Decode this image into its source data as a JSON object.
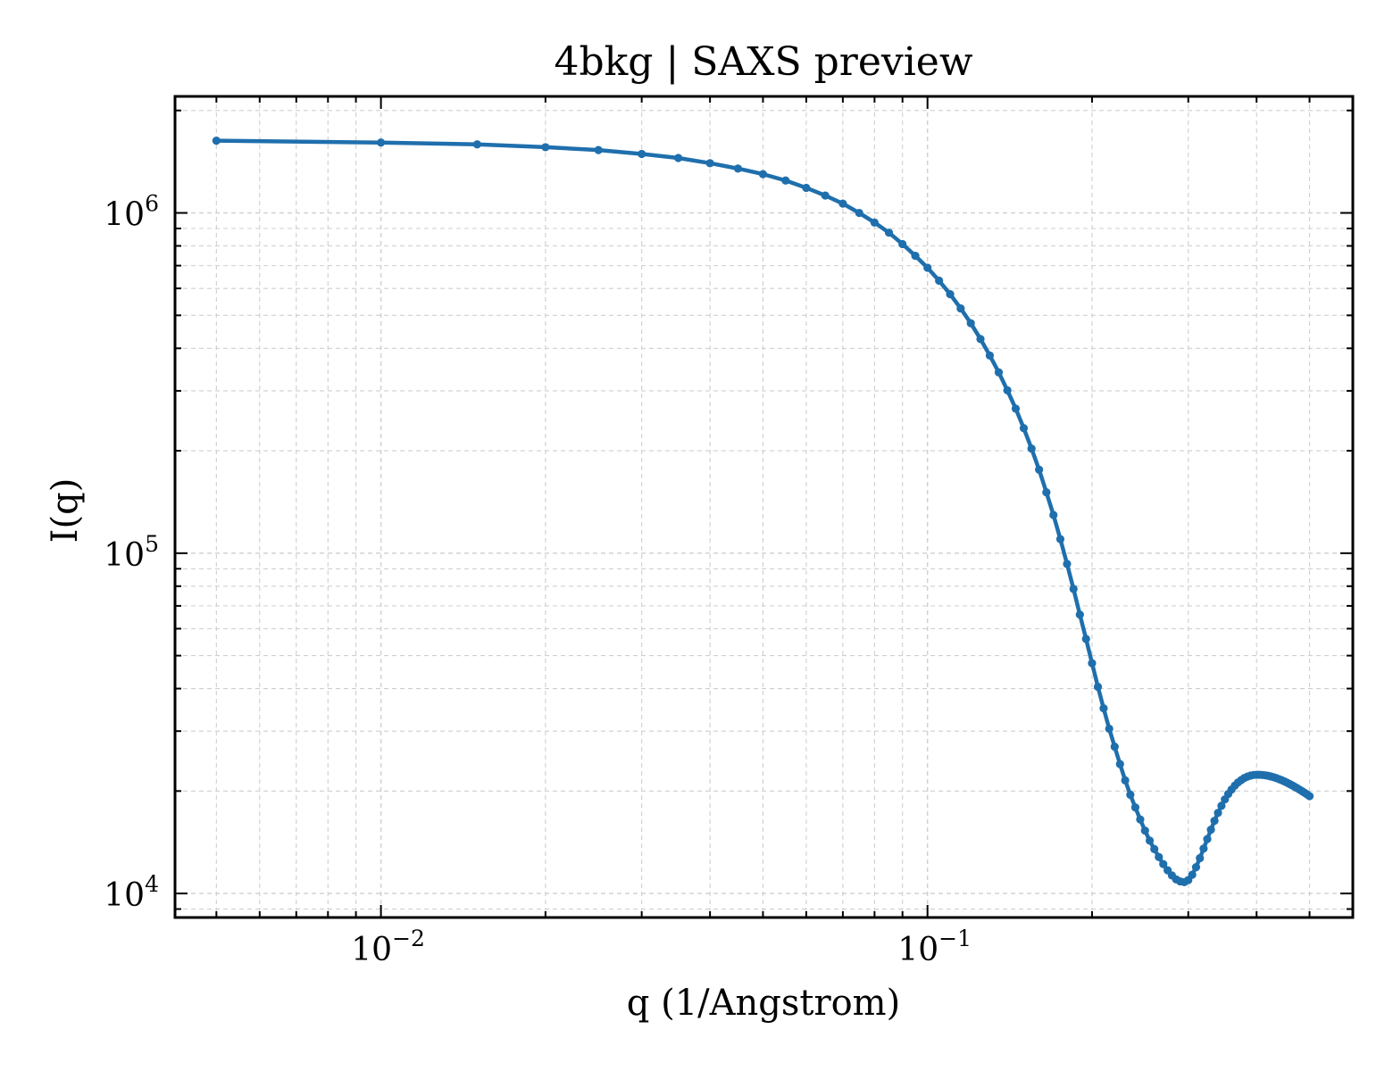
{
  "chart_data": {
    "type": "line",
    "title": "4bkg | SAXS preview",
    "xlabel": "q (1/Angstrom)",
    "ylabel": "I(q)",
    "xscale": "log",
    "yscale": "log",
    "xlim": [
      0.0042,
      0.6
    ],
    "ylim": [
      8500,
      2200000
    ],
    "grid": true,
    "line_color": "#1f6fad",
    "x_ticks": [
      {
        "value": 0.01,
        "base": "10",
        "exp": "−2"
      },
      {
        "value": 0.1,
        "base": "10",
        "exp": "−1"
      }
    ],
    "y_ticks": [
      {
        "value": 10000,
        "base": "10",
        "exp": "4"
      },
      {
        "value": 100000,
        "base": "10",
        "exp": "5"
      },
      {
        "value": 1000000,
        "base": "10",
        "exp": "6"
      }
    ],
    "series": [
      {
        "x": [
          0.005,
          0.01,
          0.015,
          0.02,
          0.025,
          0.03,
          0.035,
          0.04,
          0.045,
          0.05,
          0.055,
          0.06,
          0.065,
          0.07,
          0.075,
          0.08,
          0.085,
          0.09,
          0.095,
          0.1,
          0.105,
          0.11,
          0.115,
          0.12,
          0.125,
          0.13,
          0.135,
          0.14,
          0.145,
          0.15,
          0.155,
          0.16,
          0.165,
          0.17,
          0.175,
          0.18,
          0.185,
          0.19,
          0.195,
          0.2,
          0.205,
          0.21,
          0.215,
          0.22,
          0.225,
          0.23,
          0.235,
          0.24,
          0.245,
          0.25,
          0.255,
          0.26,
          0.265,
          0.27,
          0.275,
          0.28,
          0.285,
          0.29,
          0.295,
          0.3,
          0.305,
          0.31,
          0.315,
          0.32,
          0.325,
          0.33,
          0.335,
          0.34,
          0.345,
          0.35,
          0.355,
          0.36,
          0.365,
          0.37,
          0.375,
          0.38,
          0.385,
          0.39,
          0.395,
          0.4,
          0.405,
          0.41,
          0.415,
          0.42,
          0.425,
          0.43,
          0.435,
          0.44,
          0.445,
          0.45,
          0.455,
          0.46,
          0.465,
          0.47,
          0.475,
          0.48,
          0.485,
          0.49,
          0.495,
          0.5
        ],
        "y": [
          1630000,
          1610000,
          1590000,
          1560000,
          1530000,
          1490000,
          1450000,
          1400000,
          1350000,
          1300000,
          1245000,
          1185000,
          1125000,
          1065000,
          1000000,
          937000,
          875000,
          810000,
          748000,
          690000,
          632000,
          577000,
          524000,
          474000,
          426000,
          381000,
          340000,
          301000,
          266000,
          233000,
          203000,
          176000,
          151000,
          129500,
          110000,
          93000,
          78500,
          66000,
          56000,
          47500,
          40500,
          35000,
          30500,
          27000,
          24000,
          21500,
          19500,
          17900,
          16500,
          15300,
          14300,
          13500,
          12800,
          12200,
          11700,
          11300,
          11000,
          10850,
          10800,
          10950,
          11350,
          11950,
          12700,
          13550,
          14450,
          15400,
          16350,
          17250,
          18100,
          18900,
          19600,
          20200,
          20750,
          21200,
          21550,
          21850,
          22050,
          22200,
          22300,
          22330,
          22330,
          22300,
          22250,
          22170,
          22070,
          21950,
          21820,
          21670,
          21510,
          21340,
          21160,
          20970,
          20780,
          20580,
          20380,
          20170,
          19960,
          19750,
          19540,
          19320
        ]
      }
    ]
  }
}
